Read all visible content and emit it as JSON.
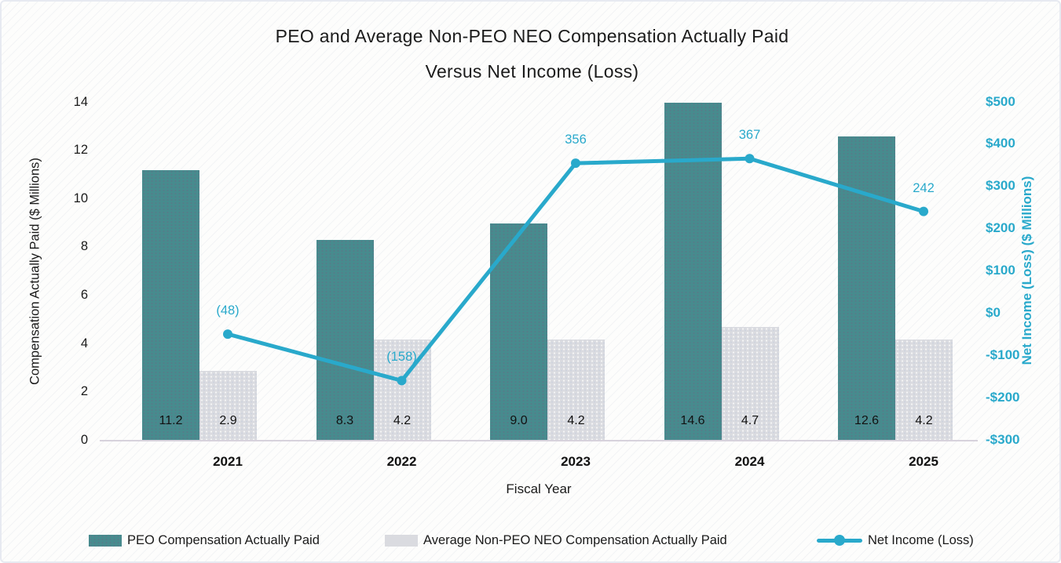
{
  "header": {
    "title_line1": "PEO and Average Non-PEO NEO Compensation Actually Paid",
    "title_line2": "Versus Net Income (Loss)"
  },
  "colors": {
    "peo_bar": "#4d8387",
    "neo_bar": "#d9dade",
    "net_income_line": "#29a9cb",
    "axis_text": "#1a1a1a",
    "axis_baseline": "#d7d2dc"
  },
  "chart_data": {
    "type": "combo-bar-line",
    "title": "PEO and Average Non-PEO NEO Compensation Actually Paid Versus Net Income (Loss)",
    "categories": [
      "2021",
      "2022",
      "2023",
      "2024",
      "2025"
    ],
    "xlabel": "Fiscal Year",
    "series": [
      {
        "name": "PEO Compensation Actually Paid",
        "type": "bar",
        "axis": "left",
        "values": [
          11.2,
          8.3,
          9.0,
          14.6,
          12.6
        ],
        "labels": [
          "11.2",
          "8.3",
          "9.0",
          "14.6",
          "12.6"
        ],
        "color": "#4d8387"
      },
      {
        "name": "Average Non-PEO NEO Compensation Actually Paid",
        "type": "bar",
        "axis": "left",
        "values": [
          2.9,
          4.2,
          4.2,
          4.7,
          4.2
        ],
        "labels": [
          "2.9",
          "4.2",
          "4.2",
          "4.7",
          "4.2"
        ],
        "color": "#d9dade"
      },
      {
        "name": "Net Income (Loss)",
        "type": "line",
        "axis": "right",
        "values": [
          -48,
          -158,
          356,
          367,
          242
        ],
        "labels": [
          "(48)",
          "(158)",
          "356",
          "367",
          "242"
        ],
        "color": "#29a9cb"
      }
    ],
    "left_axis": {
      "label": "Compensation Actually Paid ($ Millions)",
      "min": 0,
      "max": 14,
      "ticks": [
        {
          "v": 0,
          "t": "0"
        },
        {
          "v": 2,
          "t": "2"
        },
        {
          "v": 4,
          "t": "4"
        },
        {
          "v": 6,
          "t": "6"
        },
        {
          "v": 8,
          "t": "8"
        },
        {
          "v": 10,
          "t": "10"
        },
        {
          "v": 12,
          "t": "12"
        },
        {
          "v": 14,
          "t": "14"
        }
      ]
    },
    "right_axis": {
      "label": "Net Income (Loss) ($ Millions)",
      "min": -300,
      "max": 500,
      "ticks": [
        {
          "v": 500,
          "t": "$500"
        },
        {
          "v": 400,
          "t": "$400"
        },
        {
          "v": 300,
          "t": "$300"
        },
        {
          "v": 200,
          "t": "$200"
        },
        {
          "v": 100,
          "t": "$100"
        },
        {
          "v": 0,
          "t": "$0"
        },
        {
          "v": -100,
          "t": "-$100"
        },
        {
          "v": -200,
          "t": "-$200"
        },
        {
          "v": -300,
          "t": "-$300"
        }
      ]
    },
    "grid": false,
    "legend_position": "bottom"
  }
}
